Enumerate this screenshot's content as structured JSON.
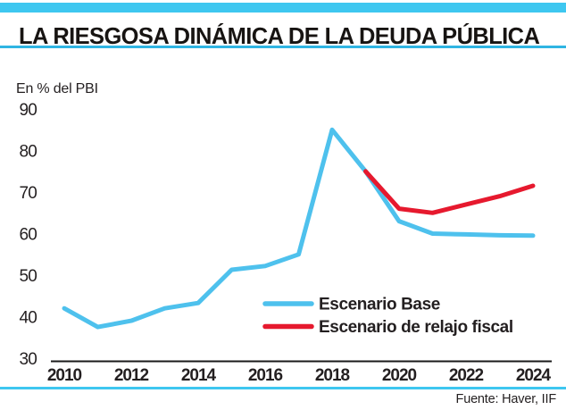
{
  "header": {
    "title": "LA RIESGOSA DINÁMICA DE LA DEUDA PÚBLICA"
  },
  "chart_data": {
    "type": "line",
    "title": "LA RIESGOSA DINÁMICA DE LA DEUDA PÚBLICA",
    "ylabel": "En % del PBI",
    "xlabel": "",
    "xlim": [
      2010,
      2024
    ],
    "ylim": [
      30,
      90
    ],
    "yticks": [
      30,
      40,
      50,
      60,
      70,
      80,
      90
    ],
    "xticks": [
      2010,
      2012,
      2014,
      2016,
      2018,
      2020,
      2022,
      2024
    ],
    "grid": false,
    "legend_position": "inside-bottom-right",
    "series": [
      {
        "name": "Escenario Base",
        "color": "#4ec1ed",
        "x": [
          2010,
          2011,
          2012,
          2013,
          2014,
          2015,
          2016,
          2017,
          2018,
          2019,
          2020,
          2021,
          2022,
          2023,
          2024
        ],
        "values": [
          42,
          37.5,
          39,
          42,
          43.3,
          51.3,
          52.2,
          55,
          85,
          75,
          63,
          60,
          59.8,
          59.6,
          59.5
        ]
      },
      {
        "name": "Escenario de relajo fiscal",
        "color": "#e6192e",
        "x": [
          2019,
          2020,
          2021,
          2022,
          2023,
          2024
        ],
        "values": [
          75,
          66,
          65,
          67,
          69,
          71.5
        ]
      }
    ]
  },
  "footer": {
    "source": "Fuente: Haver, IIF"
  },
  "colors": {
    "accent_cyan": "#3ec7f0",
    "title_rule_blue": "#2fb5e3",
    "axis_black": "#1a1a1a",
    "text": "#231f20"
  }
}
